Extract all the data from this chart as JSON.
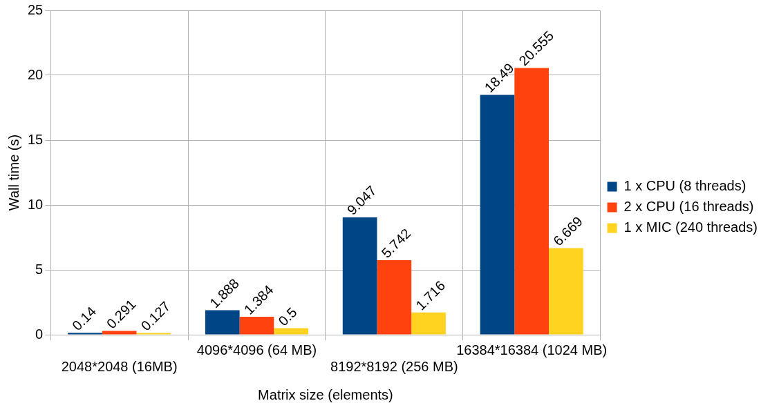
{
  "chart_data": {
    "type": "bar",
    "xlabel": "Matrix size (elements)",
    "ylabel": "Wall time (s)",
    "categories": [
      "2048*2048 (16MB)",
      "4096*4096 (64 MB)",
      "8192*8192 (256 MB)",
      "16384*16384 (1024 MB)"
    ],
    "series": [
      {
        "name": "1 x CPU (8 threads)",
        "color": "#004586",
        "values": [
          0.14,
          1.888,
          9.047,
          18.49
        ]
      },
      {
        "name": "2 x CPU (16 threads)",
        "color": "#ff420e",
        "values": [
          0.291,
          1.384,
          5.742,
          20.555
        ]
      },
      {
        "name": "1 x MIC (240 threads)",
        "color": "#ffd320",
        "values": [
          0.127,
          0.5,
          1.716,
          6.669
        ]
      }
    ],
    "ylim": [
      0,
      25
    ],
    "yticks": [
      0,
      5,
      10,
      15,
      20,
      25
    ],
    "grid": true,
    "legend": "right",
    "data_labels": true
  }
}
